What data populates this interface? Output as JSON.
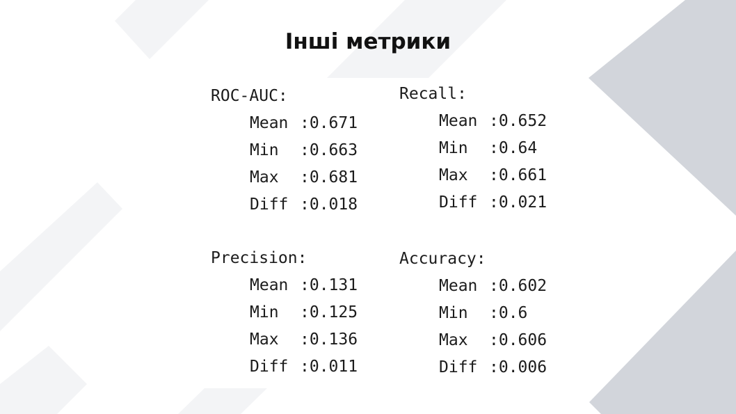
{
  "title": "Інші метрики",
  "blocks": [
    {
      "heading": "ROC-AUC:",
      "rows": [
        {
          "label": "Mean",
          "value": ":0.671"
        },
        {
          "label": "Min",
          "value": ":0.663"
        },
        {
          "label": "Max",
          "value": ":0.681"
        },
        {
          "label": "Diff",
          "value": ":0.018"
        }
      ]
    },
    {
      "heading": "Recall:",
      "rows": [
        {
          "label": "Mean",
          "value": ":0.652"
        },
        {
          "label": "Min",
          "value": ":0.64"
        },
        {
          "label": "Max",
          "value": ":0.661"
        },
        {
          "label": "Diff",
          "value": ":0.021"
        }
      ]
    },
    {
      "heading": "Precision:",
      "rows": [
        {
          "label": "Mean",
          "value": ":0.131"
        },
        {
          "label": "Min",
          "value": ":0.125"
        },
        {
          "label": "Max",
          "value": ":0.136"
        },
        {
          "label": "Diff",
          "value": ":0.011"
        }
      ]
    },
    {
      "heading": "Accuracy:",
      "rows": [
        {
          "label": "Mean",
          "value": ":0.602"
        },
        {
          "label": "Min",
          "value": ":0.6"
        },
        {
          "label": "Max",
          "value": ":0.606"
        },
        {
          "label": "Diff",
          "value": ":0.006"
        }
      ]
    }
  ],
  "colors": {
    "background": "#ffffff",
    "stripe_light": "#f3f4f6",
    "stripe_dark": "#d2d5db",
    "text": "#1c1c1c"
  }
}
